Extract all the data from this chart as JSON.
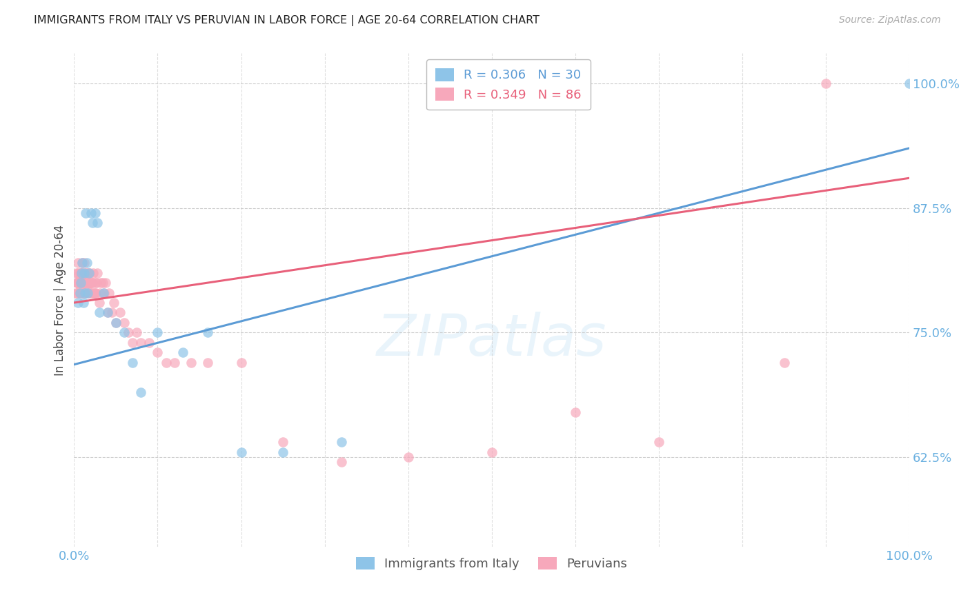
{
  "title": "IMMIGRANTS FROM ITALY VS PERUVIAN IN LABOR FORCE | AGE 20-64 CORRELATION CHART",
  "source": "Source: ZipAtlas.com",
  "ylabel": "In Labor Force | Age 20-64",
  "xlim": [
    0.0,
    1.0
  ],
  "ylim": [
    0.535,
    1.03
  ],
  "yticks": [
    0.625,
    0.75,
    0.875,
    1.0
  ],
  "ytick_labels": [
    "62.5%",
    "75.0%",
    "87.5%",
    "100.0%"
  ],
  "xticks": [
    0.0,
    0.1,
    0.2,
    0.3,
    0.4,
    0.5,
    0.6,
    0.7,
    0.8,
    0.9,
    1.0
  ],
  "legend_italy_r": "R = 0.306",
  "legend_italy_n": "N = 30",
  "legend_peru_r": "R = 0.349",
  "legend_peru_n": "N = 86",
  "color_italy": "#8ec4e8",
  "color_peru": "#f7a8bb",
  "line_color_italy": "#5b9bd5",
  "line_color_peru": "#e8607a",
  "background_color": "#ffffff",
  "grid_color": "#c8c8c8",
  "axis_label_color": "#6ab0e0",
  "italy_x": [
    0.005,
    0.007,
    0.008,
    0.009,
    0.01,
    0.011,
    0.012,
    0.013,
    0.014,
    0.015,
    0.016,
    0.018,
    0.02,
    0.022,
    0.025,
    0.028,
    0.03,
    0.035,
    0.04,
    0.05,
    0.06,
    0.07,
    0.08,
    0.1,
    0.13,
    0.16,
    0.2,
    0.25,
    0.32,
    1.0
  ],
  "italy_y": [
    0.78,
    0.79,
    0.8,
    0.81,
    0.82,
    0.78,
    0.81,
    0.79,
    0.87,
    0.82,
    0.79,
    0.81,
    0.87,
    0.86,
    0.87,
    0.86,
    0.77,
    0.79,
    0.77,
    0.76,
    0.75,
    0.72,
    0.69,
    0.75,
    0.73,
    0.75,
    0.63,
    0.63,
    0.64,
    1.0
  ],
  "peru_x": [
    0.002,
    0.003,
    0.003,
    0.004,
    0.004,
    0.005,
    0.005,
    0.005,
    0.006,
    0.006,
    0.007,
    0.007,
    0.007,
    0.008,
    0.008,
    0.008,
    0.009,
    0.009,
    0.01,
    0.01,
    0.01,
    0.01,
    0.011,
    0.011,
    0.012,
    0.012,
    0.012,
    0.013,
    0.013,
    0.014,
    0.014,
    0.015,
    0.015,
    0.015,
    0.016,
    0.016,
    0.017,
    0.017,
    0.018,
    0.018,
    0.019,
    0.019,
    0.02,
    0.02,
    0.021,
    0.022,
    0.022,
    0.023,
    0.024,
    0.025,
    0.025,
    0.026,
    0.027,
    0.028,
    0.03,
    0.031,
    0.032,
    0.034,
    0.036,
    0.038,
    0.04,
    0.042,
    0.045,
    0.048,
    0.05,
    0.055,
    0.06,
    0.065,
    0.07,
    0.075,
    0.08,
    0.09,
    0.1,
    0.11,
    0.12,
    0.14,
    0.16,
    0.2,
    0.25,
    0.32,
    0.4,
    0.5,
    0.6,
    0.7,
    0.85,
    0.9
  ],
  "peru_y": [
    0.79,
    0.8,
    0.81,
    0.79,
    0.8,
    0.8,
    0.81,
    0.82,
    0.79,
    0.8,
    0.8,
    0.805,
    0.81,
    0.795,
    0.8,
    0.81,
    0.8,
    0.81,
    0.79,
    0.8,
    0.81,
    0.82,
    0.79,
    0.8,
    0.8,
    0.81,
    0.82,
    0.79,
    0.8,
    0.8,
    0.81,
    0.795,
    0.8,
    0.81,
    0.79,
    0.8,
    0.8,
    0.81,
    0.79,
    0.8,
    0.8,
    0.81,
    0.79,
    0.8,
    0.8,
    0.79,
    0.8,
    0.81,
    0.79,
    0.79,
    0.8,
    0.79,
    0.8,
    0.81,
    0.78,
    0.79,
    0.8,
    0.8,
    0.79,
    0.8,
    0.77,
    0.79,
    0.77,
    0.78,
    0.76,
    0.77,
    0.76,
    0.75,
    0.74,
    0.75,
    0.74,
    0.74,
    0.73,
    0.72,
    0.72,
    0.72,
    0.72,
    0.72,
    0.64,
    0.62,
    0.625,
    0.63,
    0.67,
    0.64,
    0.72,
    1.0
  ],
  "blue_line_x0": 0.0,
  "blue_line_y0": 0.718,
  "blue_line_x1": 1.0,
  "blue_line_y1": 0.935,
  "pink_line_x0": 0.0,
  "pink_line_y0": 0.78,
  "pink_line_x1": 1.0,
  "pink_line_y1": 0.905
}
